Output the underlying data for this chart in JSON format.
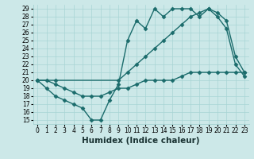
{
  "xlabel": "Humidex (Indice chaleur)",
  "bg_color": "#cce8e8",
  "line_color": "#1a6b6b",
  "xlim": [
    -0.5,
    23.5
  ],
  "ylim": [
    14.5,
    29.5
  ],
  "yticks": [
    15,
    16,
    17,
    18,
    19,
    20,
    21,
    22,
    23,
    24,
    25,
    26,
    27,
    28,
    29
  ],
  "xticks": [
    0,
    1,
    2,
    3,
    4,
    5,
    6,
    7,
    8,
    9,
    10,
    11,
    12,
    13,
    14,
    15,
    16,
    17,
    18,
    19,
    20,
    21,
    22,
    23
  ],
  "line1_x": [
    0,
    1,
    2,
    3,
    4,
    5,
    6,
    7,
    8,
    9,
    10,
    11,
    12,
    13,
    14,
    15,
    16,
    17,
    18,
    19,
    20,
    21,
    22,
    23
  ],
  "line1_y": [
    20,
    19,
    18,
    17.5,
    17,
    16.5,
    15,
    15,
    17.5,
    19.5,
    25,
    27.5,
    26.5,
    29,
    28,
    29,
    29,
    29,
    28,
    29,
    28,
    26.5,
    22,
    20.5
  ],
  "line2_x": [
    0,
    2,
    9,
    10,
    11,
    12,
    13,
    14,
    15,
    16,
    17,
    18,
    19,
    20,
    21,
    22,
    23
  ],
  "line2_y": [
    20,
    20,
    20,
    21,
    22,
    23,
    24,
    25,
    26,
    27,
    28,
    28.5,
    29,
    28.5,
    27.5,
    23,
    21
  ],
  "line3_x": [
    0,
    1,
    2,
    3,
    4,
    5,
    6,
    7,
    8,
    9,
    10,
    11,
    12,
    13,
    14,
    15,
    16,
    17,
    18,
    19,
    20,
    21,
    22,
    23
  ],
  "line3_y": [
    20,
    20,
    19.5,
    19,
    18.5,
    18,
    18,
    18,
    18.5,
    19,
    19,
    19.5,
    20,
    20,
    20,
    20,
    20.5,
    21,
    21,
    21,
    21,
    21,
    21,
    21
  ],
  "marker": "D",
  "markersize": 2.5,
  "linewidth": 1.0,
  "grid_color": "#a8d4d4",
  "tick_fontsize": 5.5,
  "xlabel_fontsize": 7.5
}
